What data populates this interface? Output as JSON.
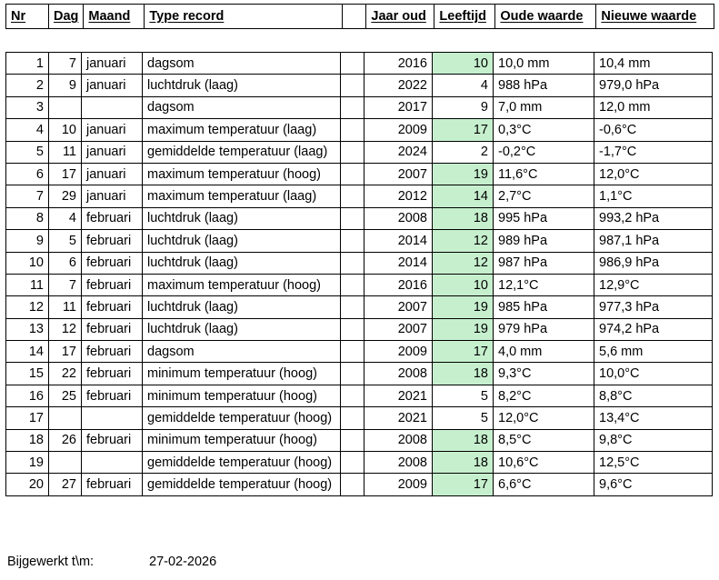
{
  "header": {
    "nr": "Nr",
    "dag": "Dag",
    "maand": "Maand",
    "type_record": "Type record",
    "jaar_oud": "Jaar oud",
    "leeftijd": "Leeftijd",
    "oude_waarde": "Oude waarde",
    "nieuwe_waarde": "Nieuwe waarde"
  },
  "table": {
    "rows": [
      {
        "nr": "1",
        "dag": "7",
        "maand": "januari",
        "type": "dagsom",
        "jaar_oud": "2016",
        "leeftijd": "10",
        "leeftijd_highlight": true,
        "oude_waarde": "10,0 mm",
        "nieuwe_waarde": "10,4 mm"
      },
      {
        "nr": "2",
        "dag": "9",
        "maand": "januari",
        "type": "luchtdruk (laag)",
        "jaar_oud": "2022",
        "leeftijd": "4",
        "leeftijd_highlight": false,
        "oude_waarde": "988 hPa",
        "nieuwe_waarde": "979,0 hPa"
      },
      {
        "nr": "3",
        "dag": "",
        "maand": "",
        "type": "dagsom",
        "jaar_oud": "2017",
        "leeftijd": "9",
        "leeftijd_highlight": false,
        "oude_waarde": "7,0 mm",
        "nieuwe_waarde": "12,0 mm"
      },
      {
        "nr": "4",
        "dag": "10",
        "maand": "januari",
        "type": "maximum temperatuur (laag)",
        "jaar_oud": "2009",
        "leeftijd": "17",
        "leeftijd_highlight": true,
        "oude_waarde": "0,3°C",
        "nieuwe_waarde": "-0,6°C"
      },
      {
        "nr": "5",
        "dag": "11",
        "maand": "januari",
        "type": "gemiddelde temperatuur (laag)",
        "jaar_oud": "2024",
        "leeftijd": "2",
        "leeftijd_highlight": false,
        "oude_waarde": "-0,2°C",
        "nieuwe_waarde": "-1,7°C"
      },
      {
        "nr": "6",
        "dag": "17",
        "maand": "januari",
        "type": "maximum temperatuur (hoog)",
        "jaar_oud": "2007",
        "leeftijd": "19",
        "leeftijd_highlight": true,
        "oude_waarde": "11,6°C",
        "nieuwe_waarde": "12,0°C"
      },
      {
        "nr": "7",
        "dag": "29",
        "maand": "januari",
        "type": "maximum temperatuur (laag)",
        "jaar_oud": "2012",
        "leeftijd": "14",
        "leeftijd_highlight": true,
        "oude_waarde": "2,7°C",
        "nieuwe_waarde": "1,1°C"
      },
      {
        "nr": "8",
        "dag": "4",
        "maand": "februari",
        "type": "luchtdruk (laag)",
        "jaar_oud": "2008",
        "leeftijd": "18",
        "leeftijd_highlight": true,
        "oude_waarde": "995 hPa",
        "nieuwe_waarde": "993,2 hPa"
      },
      {
        "nr": "9",
        "dag": "5",
        "maand": "februari",
        "type": "luchtdruk (laag)",
        "jaar_oud": "2014",
        "leeftijd": "12",
        "leeftijd_highlight": true,
        "oude_waarde": "989 hPa",
        "nieuwe_waarde": "987,1 hPa"
      },
      {
        "nr": "10",
        "dag": "6",
        "maand": "februari",
        "type": "luchtdruk (laag)",
        "jaar_oud": "2014",
        "leeftijd": "12",
        "leeftijd_highlight": true,
        "oude_waarde": "987 hPa",
        "nieuwe_waarde": "986,9 hPa"
      },
      {
        "nr": "11",
        "dag": "7",
        "maand": "februari",
        "type": "maximum temperatuur (hoog)",
        "jaar_oud": "2016",
        "leeftijd": "10",
        "leeftijd_highlight": true,
        "oude_waarde": "12,1°C",
        "nieuwe_waarde": "12,9°C"
      },
      {
        "nr": "12",
        "dag": "11",
        "maand": "februari",
        "type": "luchtdruk (laag)",
        "jaar_oud": "2007",
        "leeftijd": "19",
        "leeftijd_highlight": true,
        "oude_waarde": "985 hPa",
        "nieuwe_waarde": "977,3 hPa"
      },
      {
        "nr": "13",
        "dag": "12",
        "maand": "februari",
        "type": "luchtdruk (laag)",
        "jaar_oud": "2007",
        "leeftijd": "19",
        "leeftijd_highlight": true,
        "oude_waarde": "979 hPa",
        "nieuwe_waarde": "974,2 hPa"
      },
      {
        "nr": "14",
        "dag": "17",
        "maand": "februari",
        "type": "dagsom",
        "jaar_oud": "2009",
        "leeftijd": "17",
        "leeftijd_highlight": true,
        "oude_waarde": "4,0 mm",
        "nieuwe_waarde": "5,6 mm"
      },
      {
        "nr": "15",
        "dag": "22",
        "maand": "februari",
        "type": "minimum temperatuur (hoog)",
        "jaar_oud": "2008",
        "leeftijd": "18",
        "leeftijd_highlight": true,
        "oude_waarde": "9,3°C",
        "nieuwe_waarde": "10,0°C"
      },
      {
        "nr": "16",
        "dag": "25",
        "maand": "februari",
        "type": "minimum temperatuur (hoog)",
        "jaar_oud": "2021",
        "leeftijd": "5",
        "leeftijd_highlight": false,
        "oude_waarde": "8,2°C",
        "nieuwe_waarde": "8,8°C"
      },
      {
        "nr": "17",
        "dag": "",
        "maand": "",
        "type": "gemiddelde temperatuur (hoog)",
        "jaar_oud": "2021",
        "leeftijd": "5",
        "leeftijd_highlight": false,
        "oude_waarde": "12,0°C",
        "nieuwe_waarde": "13,4°C"
      },
      {
        "nr": "18",
        "dag": "26",
        "maand": "februari",
        "type": "minimum temperatuur (hoog)",
        "jaar_oud": "2008",
        "leeftijd": "18",
        "leeftijd_highlight": true,
        "oude_waarde": "8,5°C",
        "nieuwe_waarde": "9,8°C"
      },
      {
        "nr": "19",
        "dag": "",
        "maand": "",
        "type": "gemiddelde temperatuur (hoog)",
        "jaar_oud": "2008",
        "leeftijd": "18",
        "leeftijd_highlight": true,
        "oude_waarde": "10,6°C",
        "nieuwe_waarde": "12,5°C"
      },
      {
        "nr": "20",
        "dag": "27",
        "maand": "februari",
        "type": "gemiddelde temperatuur (hoog)",
        "jaar_oud": "2009",
        "leeftijd": "17",
        "leeftijd_highlight": true,
        "oude_waarde": "6,6°C",
        "nieuwe_waarde": "9,6°C"
      }
    ]
  },
  "footer": {
    "label": "Bijgewerkt t\\m:",
    "date": "27-02-2026"
  },
  "colors": {
    "highlight_green": "#C6EFCE",
    "border": "#000000",
    "background": "#FFFFFF"
  }
}
